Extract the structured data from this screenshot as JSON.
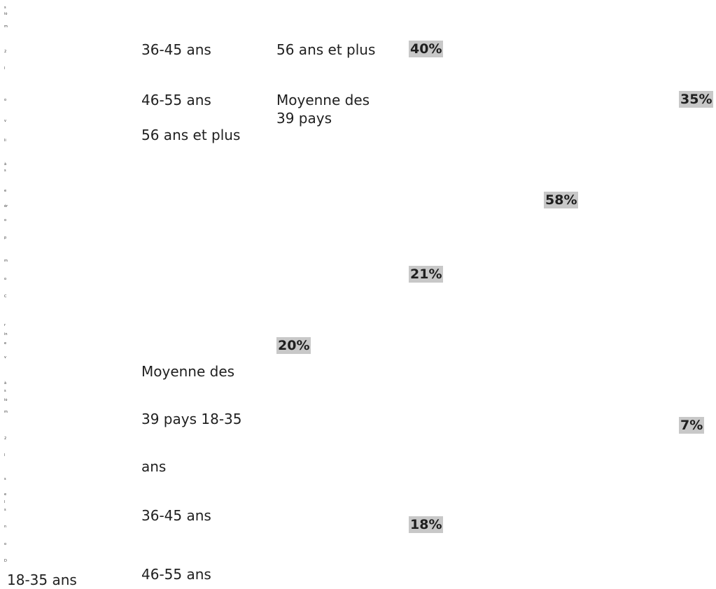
{
  "vertical_letters": [
    "s",
    "io",
    "m",
    "2",
    "l",
    "o",
    "v",
    "li",
    "à",
    "s",
    "e",
    "ér",
    "o",
    "p",
    "m",
    "o",
    "C",
    "r",
    "in",
    "e",
    "v",
    "à",
    "s",
    "io",
    "m",
    "2",
    "l",
    "s",
    "e",
    "l",
    "s",
    "n",
    "o",
    "D"
  ],
  "labels": {
    "top_col1_1": "36-45 ans",
    "top_col1_2": "46-55 ans",
    "top_col1_3": "56 ans et plus",
    "top_col2_1": "56 ans et plus",
    "top_col2_2_line1": "Moyenne des",
    "top_col2_2_line2": "39 pays",
    "bottom_col1_1": "Moyenne des",
    "bottom_col1_2": "39 pays 18-35",
    "bottom_col1_3": "ans",
    "bottom_col1_4": "36-45 ans",
    "bottom_col1_5": "46-55 ans",
    "bottom_left": "18-35 ans"
  },
  "percentages": {
    "p40": "40%",
    "p35": "35%",
    "p58": "58%",
    "p21": "21%",
    "p20": "20%",
    "p7": "7%",
    "p18": "18%"
  }
}
